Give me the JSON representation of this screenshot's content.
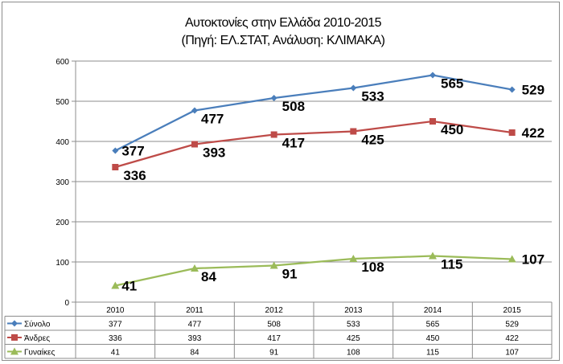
{
  "chart_data": {
    "type": "line",
    "title": "Αυτοκτονίες στην Ελλάδα 2010-2015",
    "subtitle": "(Πηγή: ΕΛ.ΣΤΑΤ, Ανάλυση: ΚΛΙΜΑΚΑ)",
    "categories": [
      "2010",
      "2011",
      "2012",
      "2013",
      "2014",
      "2015"
    ],
    "ylim": [
      0,
      600
    ],
    "yticks": [
      0,
      100,
      200,
      300,
      400,
      500,
      600
    ],
    "grid": true,
    "legend": "data-table-below",
    "series": [
      {
        "name": "Σύνολο",
        "color": "#4a7ebb",
        "marker": "diamond",
        "values": [
          377,
          477,
          508,
          533,
          565,
          529
        ]
      },
      {
        "name": "Άνδρες",
        "color": "#be4b48",
        "marker": "square",
        "values": [
          336,
          393,
          417,
          425,
          450,
          422
        ]
      },
      {
        "name": "Γυναίκες",
        "color": "#9bbb59",
        "marker": "triangle",
        "values": [
          41,
          84,
          91,
          108,
          115,
          107
        ]
      }
    ]
  }
}
